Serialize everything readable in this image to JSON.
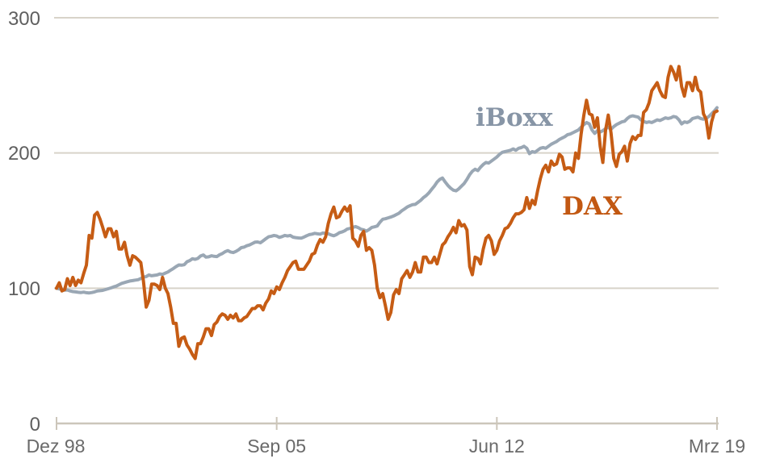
{
  "chart": {
    "y_axis_labels": [
      "300",
      "200",
      "100",
      "0"
    ],
    "x_axis_labels": [
      "Dez 98",
      "Sep 05",
      "Jun 12",
      "Mrz 19"
    ],
    "series_labels": {
      "iboxx": "iBoxx",
      "dax": "DAX"
    },
    "colors": {
      "dax_line": "#c65c14",
      "iboxx_line": "#9aa7b4",
      "dax_label": "#c25812",
      "iboxx_label": "#8795a6",
      "gridline": "#d8d3c9",
      "axis": "#ccc6ba",
      "y_tick_text": "#5f5f5f",
      "x_tick_text": "#6a6a6a"
    }
  },
  "chart_data": {
    "type": "line",
    "title": "",
    "xlabel": "",
    "ylabel": "",
    "x_interval": "monthly",
    "x_tick_labels": [
      "Dez 98",
      "Sep 05",
      "Jun 12",
      "Mrz 19"
    ],
    "ylim": [
      0,
      300
    ],
    "yticks": [
      0,
      100,
      200,
      300
    ],
    "grid": "horizontal",
    "legend_position": "inline-annotations",
    "series": [
      {
        "name": "iBoxx",
        "color": "#9aa7b4",
        "values": [
          100,
          99.5,
          99,
          98.5,
          98.7,
          98,
          97.5,
          97.3,
          97,
          96.8,
          97.1,
          96.7,
          96.5,
          96.8,
          97.3,
          98,
          98.2,
          98.4,
          99,
          99.6,
          100.2,
          101,
          101.6,
          102.6,
          103.6,
          104.2,
          104.8,
          105.3,
          105.6,
          106,
          106.3,
          107.2,
          108.2,
          108.6,
          109.8,
          109.2,
          109.5,
          109.8,
          110.6,
          110.2,
          111.2,
          112,
          113.4,
          114.6,
          116,
          117.2,
          117,
          117.4,
          119.6,
          120.4,
          121.8,
          121.4,
          122,
          123.8,
          124.6,
          123,
          123.2,
          124,
          123.6,
          123.4,
          124.8,
          125.6,
          127,
          127.8,
          126.8,
          126.4,
          127.2,
          128.4,
          130,
          130.4,
          131.4,
          132,
          133,
          134,
          134.2,
          133.6,
          135,
          136.6,
          138,
          138.4,
          139,
          138.6,
          137.6,
          138.2,
          139,
          138.6,
          139,
          137.8,
          137.4,
          137.2,
          137,
          137.8,
          138.8,
          139.6,
          140,
          140.6,
          140.2,
          140,
          140.8,
          140.6,
          140.2,
          139.4,
          138.8,
          139.6,
          141,
          141.6,
          142.4,
          143.8,
          144.2,
          145,
          145.6,
          144.8,
          143.6,
          143.2,
          142.2,
          143.4,
          145,
          145.4,
          146,
          148.8,
          151,
          151.4,
          152,
          152.6,
          153.4,
          154.4,
          155.4,
          157.2,
          158.6,
          160,
          161,
          161.8,
          162,
          163.5,
          165,
          167,
          168.5,
          170.5,
          173,
          175.5,
          178.5,
          180.5,
          181.5,
          178.5,
          176,
          174,
          172.5,
          172,
          173.5,
          175.5,
          177.5,
          180.5,
          184,
          186.5,
          188,
          187,
          189.5,
          191.5,
          193,
          192.5,
          194,
          195.5,
          197,
          199,
          200.5,
          201,
          201.5,
          202,
          203,
          202,
          203.5,
          204,
          205,
          203.5,
          199.5,
          201,
          200.5,
          202,
          203.5,
          204,
          203.5,
          205,
          206.5,
          207.5,
          208.5,
          210,
          211,
          212,
          213.5,
          214,
          215,
          216,
          217,
          219,
          221,
          222.5,
          221.5,
          217,
          214.5,
          216.5,
          215.5,
          216.5,
          218,
          219,
          217.5,
          219.5,
          221,
          222,
          223,
          223.5,
          225.5,
          227,
          227.5,
          227,
          226.5,
          224.5,
          223.5,
          222.5,
          223,
          222.5,
          223.5,
          224.5,
          224,
          225,
          226,
          225.5,
          226,
          227,
          226.5,
          224.5,
          221.5,
          223,
          222.5,
          223.5,
          225.5,
          226,
          226.5,
          225.5,
          225,
          225.5,
          227,
          229,
          231,
          233.5
        ]
      },
      {
        "name": "DAX",
        "color": "#c65c14",
        "values": [
          100,
          104,
          98,
          99,
          107,
          102,
          108,
          102,
          106,
          104,
          111,
          117,
          139,
          137,
          154,
          156,
          151,
          145,
          138,
          144,
          144,
          138,
          142,
          129,
          129,
          134,
          124,
          117,
          124,
          123,
          121,
          119,
          105,
          86,
          91,
          103,
          103,
          102,
          99,
          108,
          100,
          96,
          86,
          74,
          74,
          57,
          63,
          64,
          58,
          55,
          51,
          48,
          59,
          59,
          64,
          70,
          70,
          65,
          73,
          75,
          79,
          81,
          80,
          77,
          80,
          78,
          81,
          76,
          76,
          78,
          79,
          82,
          85,
          85,
          87,
          87,
          84,
          89,
          92,
          98,
          96,
          101,
          99,
          104,
          108,
          113,
          116,
          119,
          120,
          114,
          114,
          114,
          117,
          120,
          125,
          126,
          132,
          136,
          134,
          138,
          148,
          155,
          160,
          152,
          153,
          157,
          160,
          157,
          161,
          137,
          135,
          131,
          139,
          142,
          128,
          130,
          128,
          117,
          100,
          93,
          96,
          87,
          77,
          82,
          95,
          99,
          96,
          107,
          110,
          113,
          108,
          112,
          119,
          112,
          112,
          123,
          123,
          119,
          119,
          123,
          118,
          125,
          132,
          134,
          138,
          141,
          145,
          141,
          150,
          146,
          147,
          143,
          116,
          110,
          123,
          122,
          118,
          129,
          137,
          139,
          135,
          125,
          128,
          135,
          139,
          144,
          145,
          148,
          152,
          155,
          155,
          156,
          158,
          167,
          159,
          165,
          162,
          172,
          181,
          188,
          191,
          186,
          194,
          191,
          192,
          199,
          197,
          188,
          189,
          189,
          186,
          200,
          196,
          214,
          228,
          239,
          229,
          228,
          219,
          226,
          205,
          193,
          217,
          228,
          215,
          196,
          190,
          199,
          201,
          205,
          194,
          207,
          212,
          210,
          213,
          213,
          230,
          232,
          237,
          246,
          249,
          252,
          246,
          242,
          241,
          256,
          264,
          260,
          254,
          264,
          249,
          242,
          252,
          252,
          246,
          256,
          247,
          245,
          229,
          225,
          211,
          223,
          230,
          231
        ]
      }
    ]
  }
}
